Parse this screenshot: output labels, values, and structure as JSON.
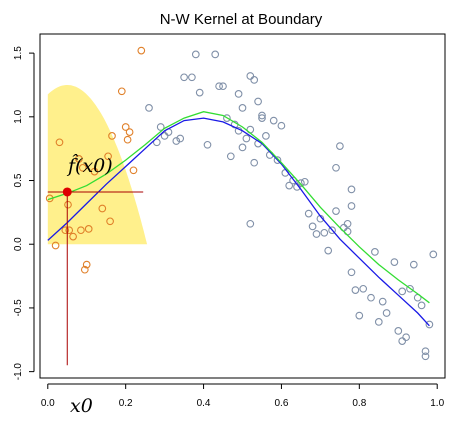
{
  "chart_data": {
    "type": "scatter",
    "title": "N-W Kernel at Boundary",
    "xlabel": "",
    "ylabel": "",
    "xlim": [
      -0.02,
      1.02
    ],
    "ylim": [
      -1.05,
      1.65
    ],
    "x_ticks": [
      "0.0",
      "0.2",
      "0.4",
      "0.6",
      "0.8",
      "1.0"
    ],
    "y_ticks": [
      "-1.0",
      "-0.5",
      "0.0",
      "0.5",
      "1.0",
      "1.5"
    ],
    "x_tick_values": [
      0.0,
      0.2,
      0.4,
      0.6,
      0.8,
      1.0
    ],
    "y_tick_values": [
      -1.0,
      -0.5,
      0.0,
      0.5,
      1.0,
      1.5
    ],
    "grid": false,
    "annotation_fhat": "f̂(x0)",
    "annotation_x0": "x0",
    "x0": 0.05,
    "fhat_x0": 0.41,
    "kernel_window": [
      0.0,
      0.255
    ],
    "kernel_peak": 1.25,
    "colors": {
      "kernel_fill": "#fff08c",
      "points_in_window": "#e0802a",
      "points_outside": "#8090a8",
      "blue_curve": "#1a1ae6",
      "green_curve": "#33dd33",
      "marker": "#dd0000",
      "crosshair": "#aa0000"
    },
    "points_in_window": [
      [
        0.005,
        0.36
      ],
      [
        0.02,
        -0.01
      ],
      [
        0.03,
        0.8
      ],
      [
        0.045,
        0.11
      ],
      [
        0.052,
        0.31
      ],
      [
        0.055,
        0.11
      ],
      [
        0.065,
        0.06
      ],
      [
        0.08,
        0.67
      ],
      [
        0.085,
        0.11
      ],
      [
        0.09,
        0.6
      ],
      [
        0.095,
        -0.2
      ],
      [
        0.1,
        -0.16
      ],
      [
        0.105,
        0.12
      ],
      [
        0.12,
        0.57
      ],
      [
        0.14,
        0.28
      ],
      [
        0.16,
        0.18
      ],
      [
        0.165,
        0.85
      ],
      [
        0.19,
        1.2
      ],
      [
        0.2,
        0.92
      ],
      [
        0.205,
        0.82
      ],
      [
        0.21,
        0.88
      ],
      [
        0.22,
        0.58
      ],
      [
        0.24,
        1.52
      ],
      [
        0.155,
        0.69
      ]
    ],
    "points_outside": [
      [
        0.26,
        1.07
      ],
      [
        0.28,
        0.8
      ],
      [
        0.29,
        0.92
      ],
      [
        0.3,
        0.85
      ],
      [
        0.31,
        0.88
      ],
      [
        0.33,
        0.81
      ],
      [
        0.34,
        0.83
      ],
      [
        0.35,
        1.31
      ],
      [
        0.37,
        1.31
      ],
      [
        0.38,
        1.49
      ],
      [
        0.39,
        1.19
      ],
      [
        0.41,
        0.78
      ],
      [
        0.43,
        1.49
      ],
      [
        0.44,
        1.24
      ],
      [
        0.45,
        1.24
      ],
      [
        0.46,
        0.99
      ],
      [
        0.47,
        0.69
      ],
      [
        0.48,
        0.94
      ],
      [
        0.49,
        1.18
      ],
      [
        0.49,
        0.89
      ],
      [
        0.5,
        0.76
      ],
      [
        0.5,
        1.07
      ],
      [
        0.51,
        0.83
      ],
      [
        0.52,
        1.32
      ],
      [
        0.52,
        0.9
      ],
      [
        0.53,
        0.64
      ],
      [
        0.53,
        1.29
      ],
      [
        0.54,
        1.12
      ],
      [
        0.54,
        0.79
      ],
      [
        0.55,
        1.01
      ],
      [
        0.55,
        0.99
      ],
      [
        0.56,
        0.85
      ],
      [
        0.57,
        0.7
      ],
      [
        0.58,
        0.97
      ],
      [
        0.52,
        0.16
      ],
      [
        0.59,
        0.66
      ],
      [
        0.6,
        0.93
      ],
      [
        0.61,
        0.56
      ],
      [
        0.62,
        0.46
      ],
      [
        0.63,
        0.5
      ],
      [
        0.64,
        0.45
      ],
      [
        0.65,
        0.48
      ],
      [
        0.66,
        0.49
      ],
      [
        0.67,
        0.24
      ],
      [
        0.68,
        0.14
      ],
      [
        0.69,
        0.08
      ],
      [
        0.7,
        0.2
      ],
      [
        0.71,
        0.09
      ],
      [
        0.72,
        -0.05
      ],
      [
        0.73,
        0.11
      ],
      [
        0.74,
        0.26
      ],
      [
        0.75,
        0.77
      ],
      [
        0.76,
        0.13
      ],
      [
        0.77,
        0.1
      ],
      [
        0.78,
        0.43
      ],
      [
        0.78,
        0.3
      ],
      [
        0.78,
        -0.22
      ],
      [
        0.79,
        -0.36
      ],
      [
        0.8,
        -0.56
      ],
      [
        0.81,
        -0.35
      ],
      [
        0.83,
        -0.42
      ],
      [
        0.84,
        -0.06
      ],
      [
        0.85,
        -0.61
      ],
      [
        0.86,
        -0.45
      ],
      [
        0.87,
        -0.54
      ],
      [
        0.89,
        -0.14
      ],
      [
        0.9,
        -0.68
      ],
      [
        0.91,
        -0.37
      ],
      [
        0.91,
        -0.76
      ],
      [
        0.92,
        -0.73
      ],
      [
        0.93,
        -0.35
      ],
      [
        0.94,
        -0.16
      ],
      [
        0.95,
        -0.42
      ],
      [
        0.96,
        -0.48
      ],
      [
        0.97,
        -0.84
      ],
      [
        0.98,
        -0.63
      ],
      [
        0.99,
        -0.08
      ],
      [
        0.97,
        -0.88
      ],
      [
        0.74,
        0.6
      ],
      [
        0.77,
        0.16
      ]
    ],
    "series": [
      {
        "points": [
          [
            0.0,
            0.03
          ],
          [
            0.05,
            0.17
          ],
          [
            0.1,
            0.32
          ],
          [
            0.15,
            0.47
          ],
          [
            0.2,
            0.61
          ],
          [
            0.25,
            0.75
          ],
          [
            0.3,
            0.89
          ],
          [
            0.35,
            0.97
          ],
          [
            0.4,
            0.99
          ],
          [
            0.45,
            0.96
          ],
          [
            0.5,
            0.89
          ],
          [
            0.55,
            0.79
          ],
          [
            0.6,
            0.63
          ],
          [
            0.65,
            0.43
          ],
          [
            0.7,
            0.22
          ],
          [
            0.75,
            0.04
          ],
          [
            0.8,
            -0.11
          ],
          [
            0.85,
            -0.26
          ],
          [
            0.9,
            -0.4
          ],
          [
            0.95,
            -0.54
          ],
          [
            0.98,
            -0.64
          ]
        ]
      },
      {
        "points": [
          [
            0.0,
            0.35
          ],
          [
            0.05,
            0.4
          ],
          [
            0.1,
            0.46
          ],
          [
            0.15,
            0.55
          ],
          [
            0.2,
            0.66
          ],
          [
            0.25,
            0.78
          ],
          [
            0.3,
            0.91
          ],
          [
            0.35,
            0.99
          ],
          [
            0.4,
            1.04
          ],
          [
            0.45,
            1.01
          ],
          [
            0.5,
            0.92
          ],
          [
            0.55,
            0.8
          ],
          [
            0.6,
            0.64
          ],
          [
            0.65,
            0.47
          ],
          [
            0.7,
            0.29
          ],
          [
            0.75,
            0.13
          ],
          [
            0.8,
            -0.02
          ],
          [
            0.85,
            -0.16
          ],
          [
            0.9,
            -0.28
          ],
          [
            0.95,
            -0.39
          ],
          [
            0.98,
            -0.46
          ]
        ]
      }
    ]
  }
}
